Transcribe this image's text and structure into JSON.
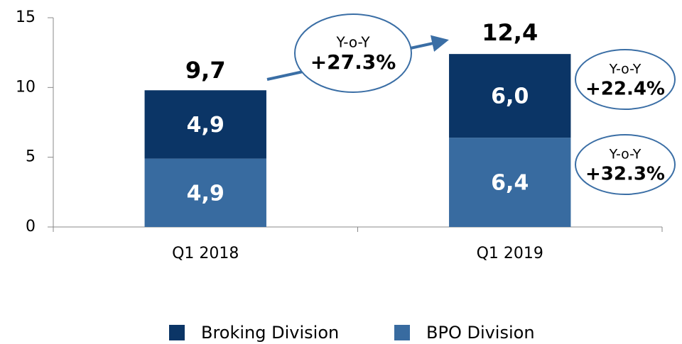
{
  "chart_data": {
    "type": "stacked_bar",
    "categories": [
      "Q1 2018",
      "Q1 2019"
    ],
    "series": [
      {
        "name": "BPO Division",
        "color": "#386ba0",
        "values": [
          4.9,
          6.4
        ],
        "value_labels": [
          "4,9",
          "6,4"
        ]
      },
      {
        "name": "Broking Division",
        "color": "#0b3566",
        "values": [
          4.9,
          6.0
        ],
        "value_labels": [
          "4,9",
          "6,0"
        ]
      }
    ],
    "totals": [
      9.7,
      12.4
    ],
    "total_labels": [
      "9,7",
      "12,4"
    ],
    "ylim": [
      0,
      15
    ],
    "yticks": [
      0,
      5,
      10,
      15
    ],
    "annotations": [
      {
        "label": "Y-o-Y",
        "text": "+27.3%"
      },
      {
        "label": "Y-o-Y",
        "text": "+22.4%"
      },
      {
        "label": "Y-o-Y",
        "text": "+32.3%"
      }
    ]
  }
}
